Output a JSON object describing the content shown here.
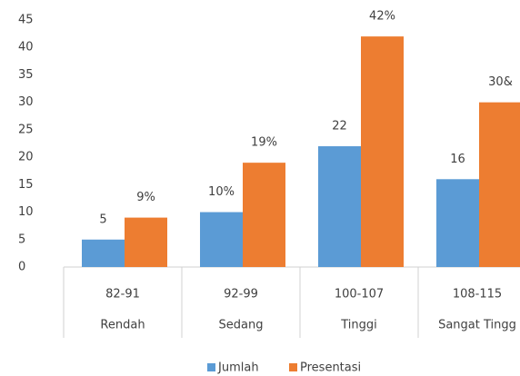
{
  "chart_data": {
    "type": "bar",
    "categories": [
      "82-91",
      "92-99",
      "100-107",
      "108-115"
    ],
    "category_groups": [
      "Rendah",
      "Sedang",
      "Tinggi",
      "Sangat Tingg"
    ],
    "series": [
      {
        "name": "Jumlah",
        "color": "#5b9bd5",
        "values": [
          5,
          10,
          22,
          16
        ],
        "value_labels": [
          "5",
          "10%",
          "22",
          "16"
        ]
      },
      {
        "name": "Presentasi",
        "color": "#ed7d31",
        "values": [
          9,
          19,
          42,
          30
        ],
        "value_labels": [
          "9%",
          "19%",
          "42%",
          "30&"
        ]
      }
    ],
    "ylim": [
      0,
      45
    ],
    "yticks": [
      0,
      5,
      10,
      15,
      20,
      25,
      30,
      35,
      40,
      45
    ],
    "grid": false,
    "legend": "bottom"
  }
}
